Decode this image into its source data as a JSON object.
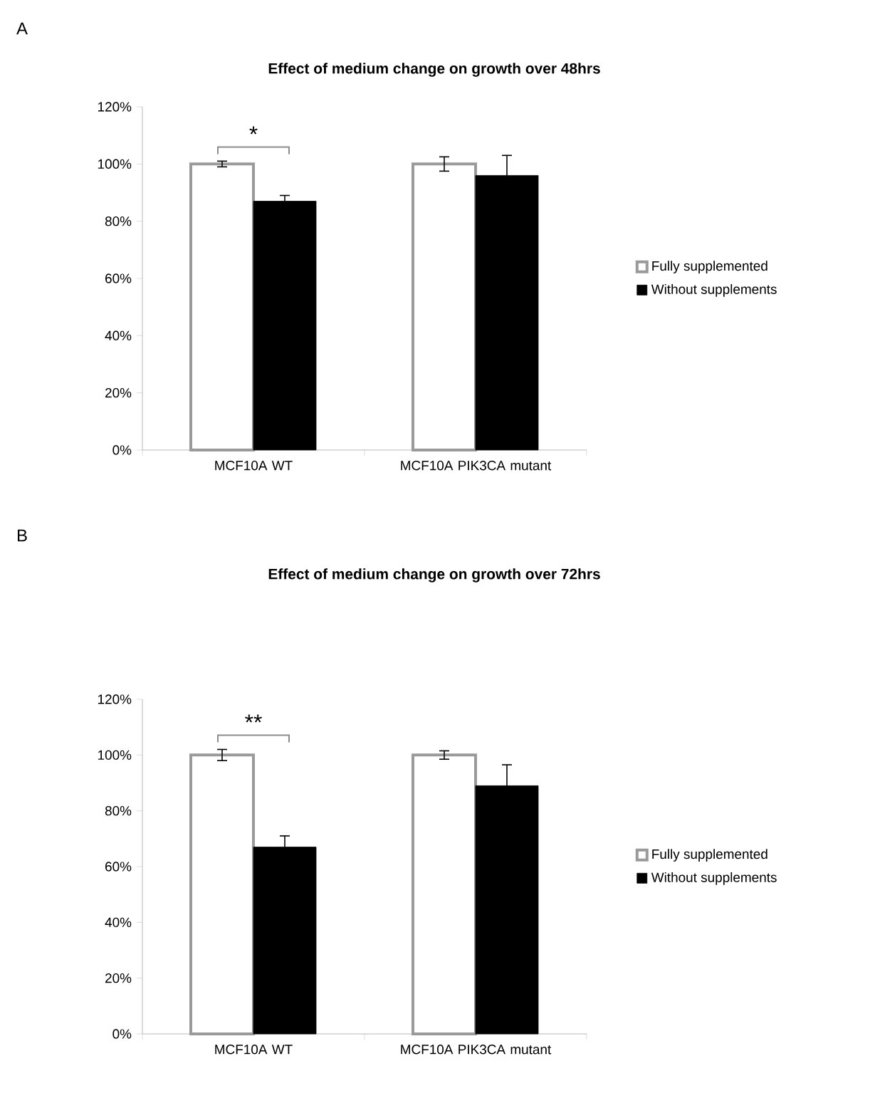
{
  "chart_data": [
    {
      "type": "bar",
      "title": "Effect of medium change on growth over 48hrs",
      "annotations": [
        "A",
        "*"
      ],
      "categories": [
        "MCF10A WT",
        "MCF10A PIK3CA mutant"
      ],
      "series": [
        {
          "name": "Fully supplemented",
          "color": "#9a9a9a",
          "values": [
            100,
            100
          ],
          "errors": [
            1,
            2.5
          ]
        },
        {
          "name": "Without supplements",
          "color": "#000000",
          "values": [
            87,
            96
          ],
          "errors": [
            2,
            7
          ]
        }
      ],
      "ylim": [
        0,
        120
      ],
      "yticks": [
        {
          "value": 0,
          "label": "0%"
        },
        {
          "value": 20,
          "label": "20%"
        },
        {
          "value": 40,
          "label": "40%"
        },
        {
          "value": 60,
          "label": "60%"
        },
        {
          "value": 80,
          "label": "80%"
        },
        {
          "value": 100,
          "label": "100%"
        },
        {
          "value": 120,
          "label": "120%"
        }
      ],
      "legend": "right"
    },
    {
      "type": "bar",
      "title": "Effect of medium change on growth over 72hrs",
      "annotations": [
        "B",
        "**"
      ],
      "categories": [
        "MCF10A WT",
        "MCF10A PIK3CA mutant"
      ],
      "series": [
        {
          "name": "Fully supplemented",
          "color": "#9a9a9a",
          "values": [
            100,
            100
          ],
          "errors": [
            2,
            1.5
          ]
        },
        {
          "name": "Without supplements",
          "color": "#000000",
          "values": [
            67,
            89
          ],
          "errors": [
            4,
            7.5
          ]
        }
      ],
      "ylim": [
        0,
        120
      ],
      "yticks": [
        {
          "value": 0,
          "label": "0%"
        },
        {
          "value": 20,
          "label": "20%"
        },
        {
          "value": 40,
          "label": "40%"
        },
        {
          "value": 60,
          "label": "60%"
        },
        {
          "value": 80,
          "label": "80%"
        },
        {
          "value": 100,
          "label": "100%"
        },
        {
          "value": 120,
          "label": "120%"
        }
      ],
      "legend": "right"
    }
  ]
}
